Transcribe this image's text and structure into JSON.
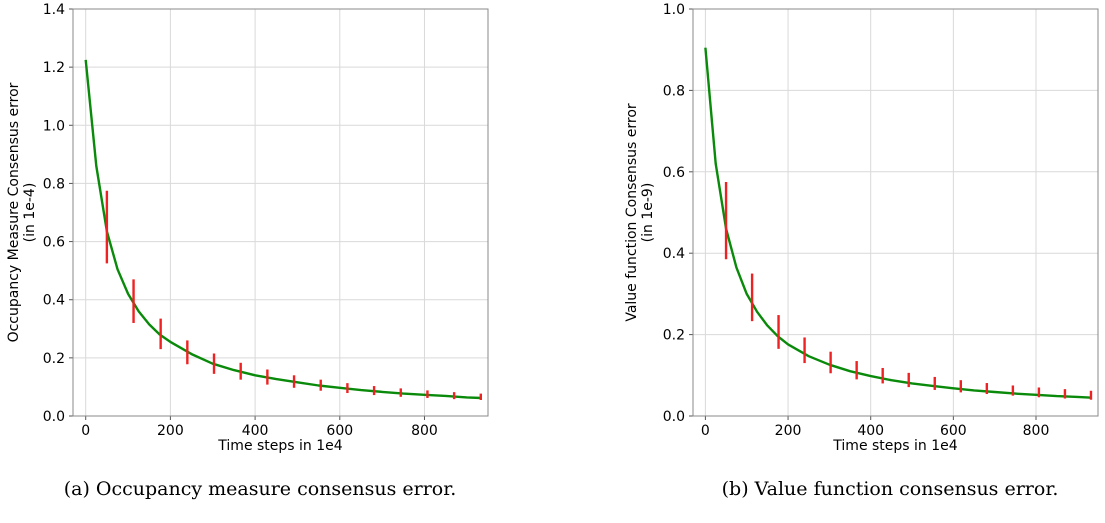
{
  "chart_data": [
    {
      "type": "line",
      "xlabel": "Time steps in 1e4",
      "ylabel": "Occupancy Measure Consensus error",
      "ylabel_sub": "(in 1e-4)",
      "xlim": [
        -30,
        950
      ],
      "ylim": [
        0,
        1.4
      ],
      "xticks": [
        "0",
        "200",
        "400",
        "600",
        "800"
      ],
      "yticks": [
        "0.0",
        "0.2",
        "0.4",
        "0.6",
        "0.8",
        "1.0",
        "1.2",
        "1.4"
      ],
      "grid": true,
      "curve": {
        "color": "#0a8a0a",
        "x": [
          0,
          25,
          50,
          75,
          100,
          125,
          150,
          175,
          200,
          250,
          300,
          350,
          400,
          450,
          500,
          550,
          600,
          650,
          700,
          750,
          800,
          850,
          900,
          935
        ],
        "y": [
          1.225,
          0.86,
          0.635,
          0.505,
          0.42,
          0.36,
          0.315,
          0.28,
          0.255,
          0.213,
          0.18,
          0.158,
          0.14,
          0.127,
          0.116,
          0.105,
          0.097,
          0.089,
          0.083,
          0.077,
          0.073,
          0.069,
          0.064,
          0.062
        ]
      },
      "error_bars": {
        "color": "#ee2222",
        "x": [
          50,
          113,
          177,
          240,
          303,
          366,
          429,
          492,
          555,
          618,
          681,
          744,
          807,
          870,
          933
        ],
        "low": [
          0.525,
          0.32,
          0.23,
          0.178,
          0.145,
          0.125,
          0.108,
          0.097,
          0.087,
          0.079,
          0.072,
          0.066,
          0.062,
          0.058,
          0.055
        ],
        "high": [
          0.775,
          0.47,
          0.335,
          0.26,
          0.215,
          0.183,
          0.16,
          0.14,
          0.125,
          0.113,
          0.103,
          0.095,
          0.088,
          0.082,
          0.077
        ]
      }
    },
    {
      "type": "line",
      "xlabel": "Time steps in 1e4",
      "ylabel": "Value function Consensus error",
      "ylabel_sub": "(in 1e-9)",
      "xlim": [
        -30,
        950
      ],
      "ylim": [
        0,
        1.0
      ],
      "xticks": [
        "0",
        "200",
        "400",
        "600",
        "800"
      ],
      "yticks": [
        "0.0",
        "0.2",
        "0.4",
        "0.6",
        "0.8",
        "1.0"
      ],
      "grid": true,
      "curve": {
        "color": "#0a8a0a",
        "x": [
          0,
          25,
          50,
          75,
          100,
          125,
          150,
          175,
          200,
          250,
          300,
          350,
          400,
          450,
          500,
          550,
          600,
          650,
          700,
          750,
          800,
          850,
          900,
          935
        ],
        "y": [
          0.905,
          0.62,
          0.46,
          0.365,
          0.3,
          0.256,
          0.222,
          0.196,
          0.176,
          0.147,
          0.126,
          0.11,
          0.098,
          0.088,
          0.08,
          0.074,
          0.068,
          0.063,
          0.059,
          0.055,
          0.052,
          0.049,
          0.047,
          0.045
        ]
      },
      "error_bars": {
        "color": "#ee2222",
        "x": [
          50,
          113,
          177,
          240,
          303,
          366,
          429,
          492,
          555,
          618,
          681,
          744,
          807,
          870,
          933
        ],
        "low": [
          0.385,
          0.233,
          0.165,
          0.13,
          0.105,
          0.09,
          0.08,
          0.071,
          0.064,
          0.058,
          0.054,
          0.05,
          0.046,
          0.043,
          0.04
        ],
        "high": [
          0.575,
          0.35,
          0.248,
          0.193,
          0.158,
          0.135,
          0.118,
          0.106,
          0.096,
          0.088,
          0.081,
          0.075,
          0.07,
          0.066,
          0.062
        ]
      }
    }
  ],
  "captions": {
    "a": "(a) Occupancy measure consensus error.",
    "b": "(b) Value function consensus error."
  }
}
